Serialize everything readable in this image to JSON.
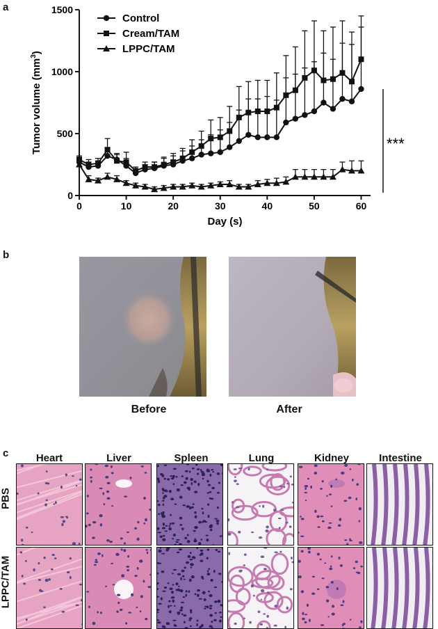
{
  "panels": {
    "a": "a",
    "b": "b",
    "c": "c"
  },
  "chart_data": {
    "type": "line",
    "xlabel": "Day (s)",
    "ylabel": "Tumor volume (mm",
    "ylabel_sup": "3",
    "ylabel_close": ")",
    "xlim": [
      0,
      62
    ],
    "ylim": [
      0,
      1500
    ],
    "x_ticks": [
      0,
      10,
      20,
      30,
      40,
      50,
      60
    ],
    "y_ticks": [
      0,
      500,
      1000,
      1500
    ],
    "legend_position": "top-left",
    "significance": "***",
    "x": [
      0,
      2,
      4,
      6,
      8,
      10,
      12,
      14,
      16,
      18,
      20,
      22,
      24,
      26,
      28,
      30,
      32,
      34,
      36,
      38,
      40,
      42,
      44,
      46,
      48,
      50,
      52,
      54,
      56,
      58,
      60
    ],
    "series": [
      {
        "name": "Control",
        "marker": "circle",
        "values": [
          270,
          230,
          240,
          320,
          290,
          240,
          180,
          210,
          220,
          240,
          250,
          280,
          300,
          330,
          340,
          350,
          390,
          440,
          490,
          470,
          470,
          470,
          590,
          620,
          650,
          680,
          750,
          700,
          780,
          760,
          860
        ],
        "errors": [
          40,
          40,
          40,
          60,
          50,
          60,
          30,
          40,
          50,
          60,
          70,
          80,
          100,
          120,
          150,
          180,
          200,
          250,
          290,
          310,
          330,
          300,
          360,
          360,
          380,
          400,
          400,
          400,
          450,
          460,
          500
        ]
      },
      {
        "name": "Cream/TAM",
        "marker": "square",
        "values": [
          290,
          250,
          260,
          370,
          280,
          270,
          200,
          230,
          230,
          250,
          270,
          300,
          350,
          400,
          460,
          470,
          520,
          630,
          670,
          680,
          680,
          710,
          810,
          850,
          950,
          1010,
          930,
          940,
          990,
          920,
          1100
        ],
        "errors": [
          30,
          40,
          40,
          90,
          50,
          80,
          30,
          40,
          40,
          60,
          70,
          80,
          100,
          120,
          150,
          160,
          200,
          250,
          250,
          250,
          250,
          280,
          320,
          350,
          380,
          400,
          400,
          420,
          420,
          400,
          350
        ]
      },
      {
        "name": "LPPC/TAM",
        "marker": "triangle",
        "values": [
          250,
          130,
          120,
          150,
          130,
          100,
          80,
          70,
          50,
          60,
          70,
          70,
          80,
          70,
          80,
          90,
          90,
          70,
          70,
          90,
          100,
          100,
          110,
          150,
          150,
          150,
          150,
          150,
          210,
          200,
          200
        ],
        "errors": [
          30,
          30,
          20,
          30,
          30,
          20,
          20,
          20,
          20,
          20,
          20,
          20,
          20,
          20,
          20,
          20,
          30,
          20,
          20,
          30,
          30,
          40,
          40,
          60,
          60,
          60,
          60,
          60,
          60,
          80,
          80
        ]
      }
    ]
  },
  "photos": {
    "before": "Before",
    "after": "After"
  },
  "histology": {
    "columns": [
      "Heart",
      "Liver",
      "Spleen",
      "Lung",
      "Kidney",
      "Intestine"
    ],
    "rows": [
      "PBS",
      "LPPC/TAM"
    ]
  }
}
